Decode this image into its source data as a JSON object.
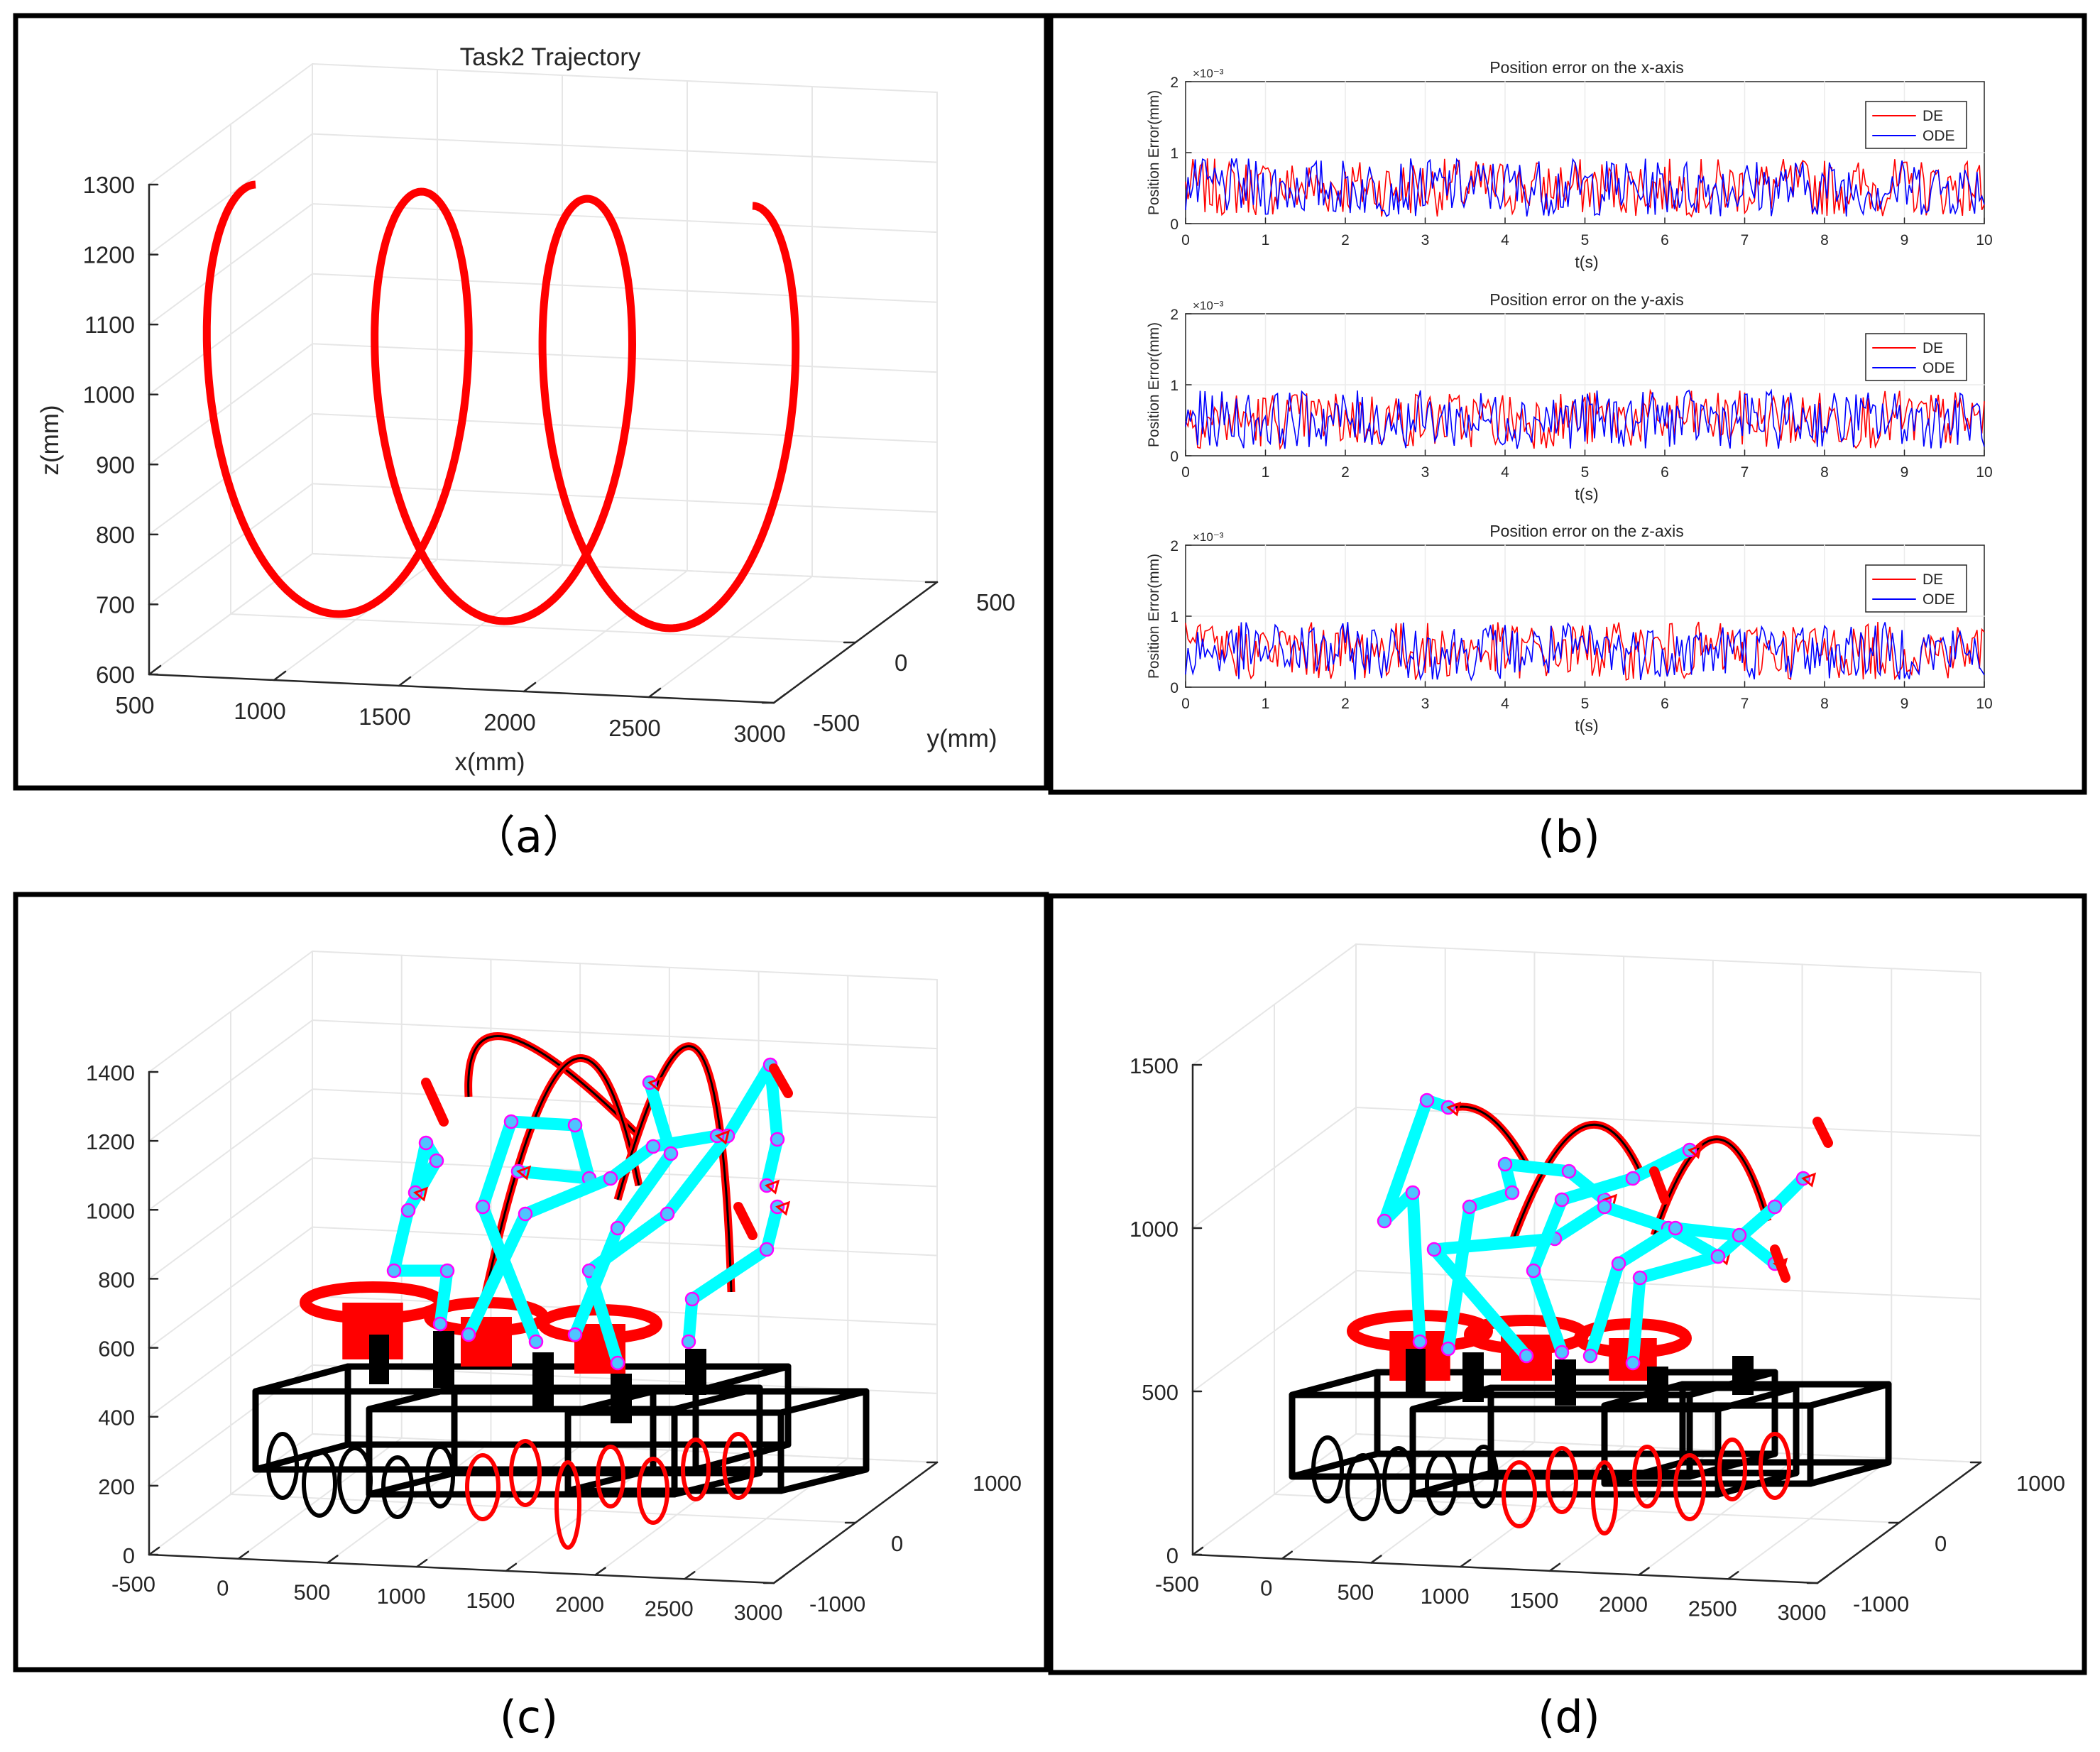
{
  "captions": {
    "a": "（a）",
    "b": "(b)",
    "c": "(c)",
    "d": "(d)"
  },
  "colors": {
    "trajectory": "#ff0000",
    "de": "#ff0000",
    "ode": "#0000ff",
    "link": "#00ffff",
    "joint": "#ff00ff",
    "frame": "#000000"
  },
  "chart_data": [
    {
      "id": "a",
      "type": "line3d",
      "title": "Task2 Trajectory",
      "xlabel": "x(mm)",
      "ylabel": "y(mm)",
      "zlabel": "z(mm)",
      "xticks": [
        "500",
        "1000",
        "1500",
        "2000",
        "2500",
        "3000"
      ],
      "yticks": [
        "-500",
        "0",
        "500"
      ],
      "zticks": [
        "600",
        "700",
        "800",
        "900",
        "1000",
        "1100",
        "1200",
        "1300"
      ],
      "xlim": [
        500,
        3000
      ],
      "ylim": [
        -500,
        500
      ],
      "zlim": [
        600,
        1300
      ],
      "series": [
        {
          "description": "helical trajectory, 3 loops",
          "x_range": [
            800,
            3000
          ],
          "z_range": [
            650,
            1290
          ]
        }
      ]
    },
    {
      "id": "b",
      "type": "line",
      "note": "three stacked noise plots",
      "xlabel": "t(s)",
      "ylabel": "Position Error(mm)",
      "exponent": "×10⁻³",
      "xticks": [
        "0",
        "1",
        "2",
        "3",
        "4",
        "5",
        "6",
        "7",
        "8",
        "9",
        "10"
      ],
      "yticks": [
        "0",
        "1",
        "2"
      ],
      "xlim": [
        0,
        10
      ],
      "ylim": [
        0,
        0.002
      ],
      "legend": [
        "DE",
        "ODE"
      ],
      "subplots": [
        {
          "title": "Position error on the x-axis"
        },
        {
          "title": "Position error on the y-axis"
        },
        {
          "title": "Position error on the z-axis"
        }
      ]
    },
    {
      "id": "c",
      "type": "scene3d",
      "xticks": [
        "-500",
        "0",
        "500",
        "1000",
        "1500",
        "2000",
        "2500",
        "3000"
      ],
      "yticks": [
        "-1000",
        "0",
        "1000"
      ],
      "zticks": [
        "0",
        "200",
        "400",
        "600",
        "800",
        "1000",
        "1200",
        "1400"
      ]
    },
    {
      "id": "d",
      "type": "scene3d",
      "xticks": [
        "-500",
        "0",
        "500",
        "1000",
        "1500",
        "2000",
        "2500",
        "3000"
      ],
      "yticks": [
        "-1000",
        "0",
        "1000"
      ],
      "zticks": [
        "0",
        "500",
        "1000",
        "1500"
      ]
    }
  ]
}
